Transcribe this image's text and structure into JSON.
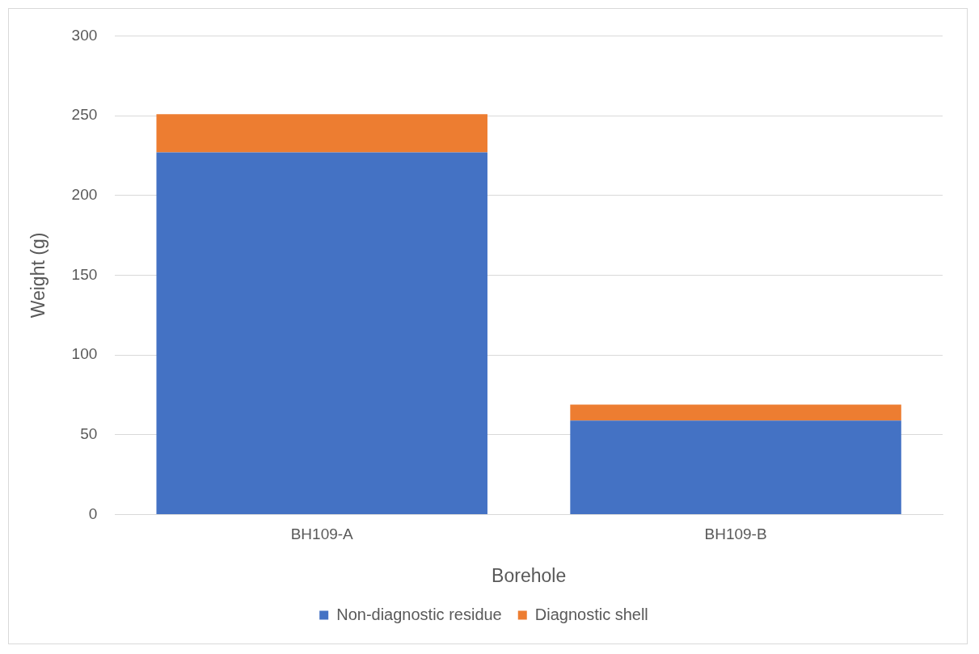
{
  "chart_data": {
    "type": "bar",
    "stacked": true,
    "xlabel": "Borehole",
    "ylabel": "Weight (g)",
    "categories": [
      "BH109-A",
      "BH109-B"
    ],
    "series": [
      {
        "name": "Non-diagnostic residue",
        "color": "#4472c4",
        "values": [
          227,
          59
        ]
      },
      {
        "name": "Diagnostic shell",
        "color": "#ed7d31",
        "values": [
          24,
          10
        ]
      }
    ],
    "ylim": [
      0,
      300
    ],
    "yticks": [
      0,
      50,
      100,
      150,
      200,
      250,
      300
    ],
    "grid": "y",
    "legend": "bottom"
  }
}
